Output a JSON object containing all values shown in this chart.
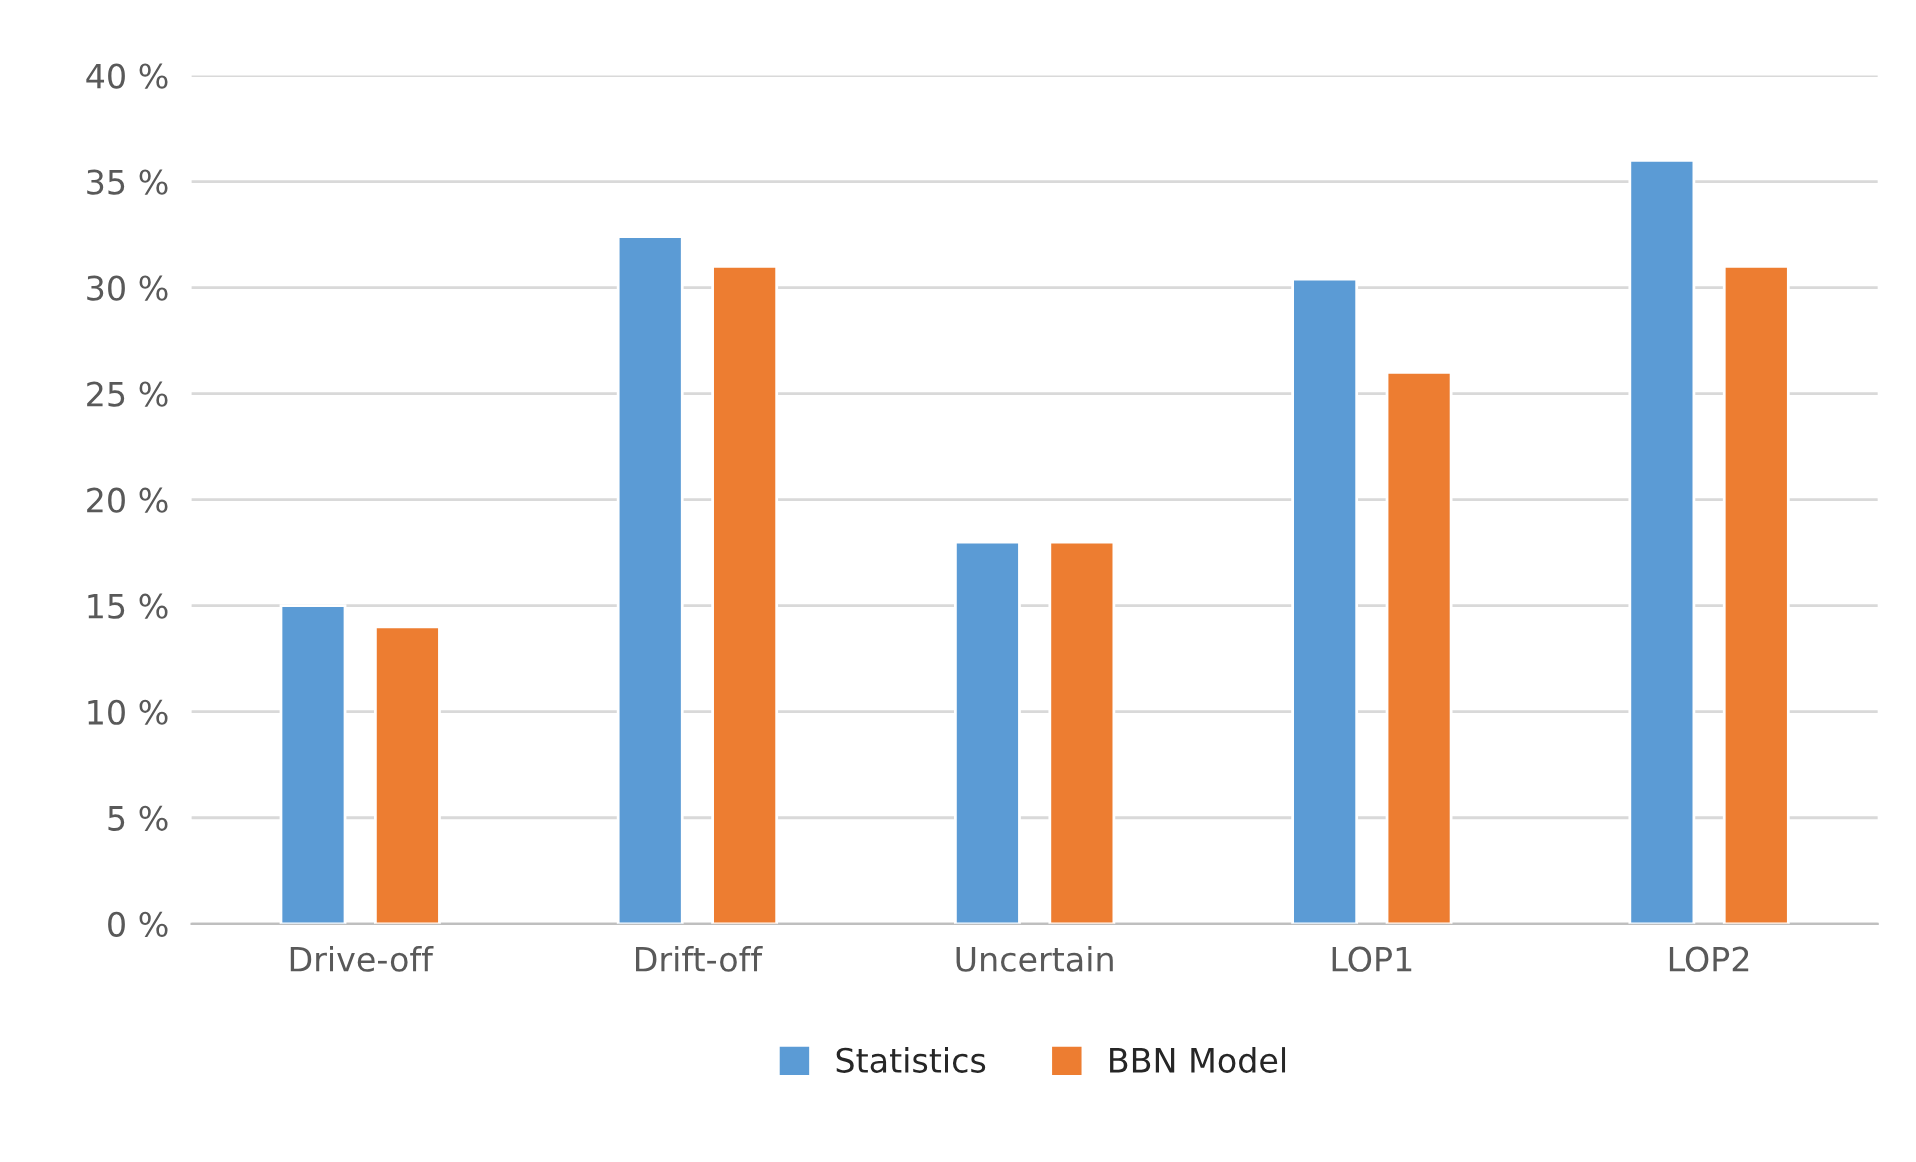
{
  "chart_data": {
    "type": "bar",
    "categories": [
      "Drive-off",
      "Drift-off",
      "Uncertain",
      "LOP1",
      "LOP2"
    ],
    "series": [
      {
        "name": "Statistics",
        "color": "#5b9bd5",
        "values": [
          15.0,
          32.4,
          18.0,
          30.4,
          36.0
        ]
      },
      {
        "name": "BBN Model",
        "color": "#ed7d31",
        "values": [
          14.0,
          31.0,
          18.0,
          26.0,
          31.0
        ]
      }
    ],
    "ylim": [
      0,
      40
    ],
    "yticks": [
      {
        "value": 0,
        "label": "0 %"
      },
      {
        "value": 5,
        "label": "5 %"
      },
      {
        "value": 10,
        "label": "10 %"
      },
      {
        "value": 15,
        "label": "15 %"
      },
      {
        "value": 20,
        "label": "20 %"
      },
      {
        "value": 25,
        "label": "25 %"
      },
      {
        "value": 30,
        "label": "30 %"
      },
      {
        "value": 35,
        "label": "35 %"
      },
      {
        "value": 40,
        "label": "40 %"
      }
    ],
    "grid": "y",
    "legend": "bottom"
  }
}
